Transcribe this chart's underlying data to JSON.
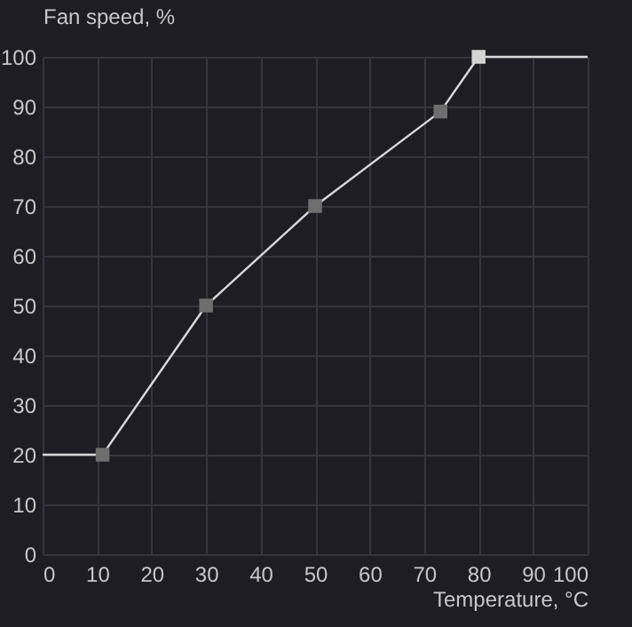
{
  "chart_data": {
    "type": "line",
    "xlabel": "Temperature, °C",
    "ylabel": "Fan speed, %",
    "series": [
      {
        "color": "#d9d9d9",
        "x": [
          0,
          11,
          30,
          50,
          73,
          80,
          100
        ],
        "values": [
          20,
          20,
          50,
          70,
          89,
          100,
          100
        ],
        "marker": "none"
      },
      {
        "type": "scatter",
        "x": [
          11,
          30,
          50,
          73,
          80
        ],
        "values": [
          20,
          50,
          70,
          89,
          100
        ],
        "colors": [
          "#6e6e6e",
          "#6e6e6e",
          "#6e6e6e",
          "#6e6e6e",
          "#d4d4d4"
        ],
        "marker": "square"
      }
    ],
    "xlim": [
      0,
      100
    ],
    "xticks": [
      0,
      10,
      20,
      30,
      40,
      50,
      60,
      70,
      80,
      90,
      100
    ],
    "ylim": [
      0,
      100
    ],
    "yticks": [
      0,
      10,
      20,
      30,
      40,
      50,
      60,
      70,
      80,
      90,
      100
    ],
    "grid": true
  }
}
